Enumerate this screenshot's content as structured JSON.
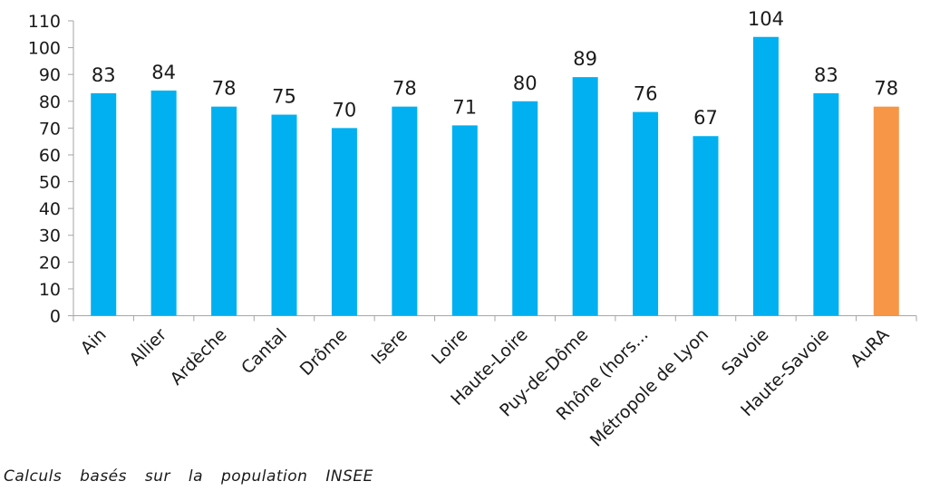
{
  "chart_data": {
    "type": "bar",
    "categories": [
      "Ain",
      "Allier",
      "Ardèche",
      "Cantal",
      "Drôme",
      "Isère",
      "Loire",
      "Haute-Loire",
      "Puy-de-Dôme",
      "Rhône (hors...",
      "Métropole de Lyon",
      "Savoie",
      "Haute-Savoie",
      "AuRA"
    ],
    "values": [
      83,
      84,
      78,
      75,
      70,
      78,
      71,
      80,
      89,
      76,
      67,
      104,
      83,
      78
    ],
    "data_labels": [
      "83",
      "84",
      "78",
      "75",
      "70",
      "78",
      "71",
      "80",
      "89",
      "76",
      "67",
      "104",
      "83",
      "78"
    ],
    "highlight_index": 13,
    "colors": {
      "bar": "#00b0f0",
      "highlight": "#f79646",
      "axis": "#a6a6a6"
    },
    "ylim": [
      0,
      110
    ],
    "yticks": [
      0,
      10,
      20,
      30,
      40,
      50,
      60,
      70,
      80,
      90,
      100,
      110
    ],
    "grid": false,
    "title": "",
    "xlabel": "",
    "ylabel": ""
  },
  "footnote": "Calculs basés sur la population INSEE"
}
